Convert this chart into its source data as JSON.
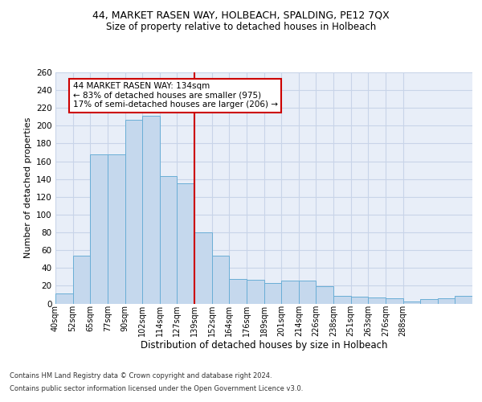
{
  "title_line1": "44, MARKET RASEN WAY, HOLBEACH, SPALDING, PE12 7QX",
  "title_line2": "Size of property relative to detached houses in Holbeach",
  "xlabel": "Distribution of detached houses by size in Holbeach",
  "ylabel": "Number of detached properties",
  "bar_values": [
    11,
    54,
    168,
    168,
    207,
    211,
    143,
    135,
    80,
    54,
    28,
    27,
    23,
    26,
    26,
    19,
    9,
    8,
    7,
    6,
    2,
    5,
    6,
    9
  ],
  "tick_labels": [
    "40sqm",
    "52sqm",
    "65sqm",
    "77sqm",
    "90sqm",
    "102sqm",
    "114sqm",
    "127sqm",
    "139sqm",
    "152sqm",
    "164sqm",
    "176sqm",
    "189sqm",
    "201sqm",
    "214sqm",
    "226sqm",
    "238sqm",
    "251sqm",
    "263sqm",
    "276sqm",
    "288sqm"
  ],
  "bar_color": "#c5d8ed",
  "bar_edge_color": "#6aaed6",
  "bar_edge_width": 0.7,
  "vline_x": 8,
  "vline_color": "#cc0000",
  "annotation_text": "44 MARKET RASEN WAY: 134sqm\n← 83% of detached houses are smaller (975)\n17% of semi-detached houses are larger (206) →",
  "annotation_box_color": "#ffffff",
  "annotation_box_edge": "#cc0000",
  "grid_color": "#c8d4e8",
  "background_color": "#e8eef8",
  "footer_line1": "Contains HM Land Registry data © Crown copyright and database right 2024.",
  "footer_line2": "Contains public sector information licensed under the Open Government Licence v3.0.",
  "ylim": [
    0,
    260
  ],
  "yticks": [
    0,
    20,
    40,
    60,
    80,
    100,
    120,
    140,
    160,
    180,
    200,
    220,
    240,
    260
  ]
}
